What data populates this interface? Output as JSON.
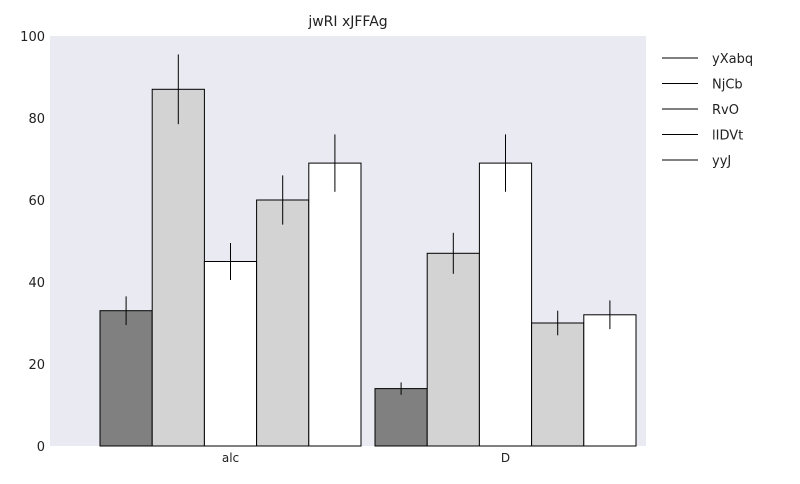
{
  "chart_data": {
    "type": "bar",
    "title": "jwRI xJFFAg",
    "xlabel": "",
    "ylabel": "",
    "categories": [
      "alc",
      "D"
    ],
    "ylim": [
      0,
      100
    ],
    "yticks": [
      0,
      20,
      40,
      60,
      80,
      100
    ],
    "grid": false,
    "legend_position": "right-top",
    "series": [
      {
        "name": "yXabq",
        "color": "#808080",
        "values": [
          33,
          14
        ],
        "errors": [
          3.5,
          1.5
        ]
      },
      {
        "name": "NjCb",
        "color": "#d3d3d3",
        "values": [
          87,
          47
        ],
        "errors": [
          8.5,
          5
        ]
      },
      {
        "name": "RvO",
        "color": "#ffffff",
        "values": [
          45,
          69
        ],
        "errors": [
          4.5,
          7
        ]
      },
      {
        "name": "lIDVt",
        "color": "#d3d3d3",
        "values": [
          60,
          30
        ],
        "errors": [
          6,
          3
        ]
      },
      {
        "name": "yyJ",
        "color": "#ffffff",
        "values": [
          69,
          32
        ],
        "errors": [
          7,
          3.5
        ]
      }
    ]
  },
  "colors": {
    "plot_background": "#eaeaf2",
    "bar_edge": "#000000"
  }
}
